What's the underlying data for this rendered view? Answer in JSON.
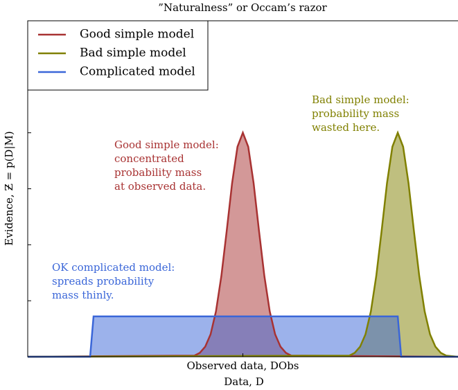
{
  "chart_data": {
    "type": "line",
    "title": "”Naturalness” or Occam’s razor",
    "x_label": "Data, D",
    "y_label": "Evidence, Ƶ = p(D|M)",
    "xlim": [
      0,
      10
    ],
    "ylim": [
      0,
      6
    ],
    "xticks": [
      {
        "value": 5,
        "label": "Observed data, DObs"
      }
    ],
    "yticks": [
      1,
      2,
      3,
      4,
      5
    ],
    "legend": "upper left",
    "fill": true,
    "series": [
      {
        "name": "Good simple model",
        "color": "#a83232",
        "x": [
          0,
          3.875,
          4,
          4.125,
          4.25,
          4.375,
          4.5,
          4.625,
          4.75,
          4.875,
          5,
          5.125,
          5.25,
          5.375,
          5.5,
          5.625,
          5.75,
          5.875,
          6,
          6.125,
          10
        ],
        "values": [
          0,
          0.02,
          0.07,
          0.18,
          0.4,
          0.81,
          1.44,
          2.25,
          3.1,
          3.75,
          4,
          3.75,
          3.1,
          2.25,
          1.44,
          0.81,
          0.4,
          0.18,
          0.07,
          0.02,
          0
        ]
      },
      {
        "name": "Bad simple model",
        "color": "#808000",
        "x": [
          0,
          7.475,
          7.6,
          7.725,
          7.85,
          7.975,
          8.1,
          8.225,
          8.35,
          8.475,
          8.6,
          8.725,
          8.85,
          8.975,
          9.1,
          9.225,
          9.35,
          9.475,
          9.6,
          9.725,
          10
        ],
        "values": [
          0,
          0.02,
          0.07,
          0.18,
          0.4,
          0.81,
          1.44,
          2.25,
          3.1,
          3.75,
          4,
          3.75,
          3.1,
          2.25,
          1.44,
          0.81,
          0.4,
          0.18,
          0.07,
          0.02,
          0
        ]
      },
      {
        "name": "Complicated model",
        "color": "#3a66d8",
        "x": [
          0,
          1.45,
          1.53,
          8.6,
          8.68,
          10
        ],
        "values": [
          0,
          0,
          0.72,
          0.72,
          0,
          0
        ]
      }
    ],
    "annotations": [
      {
        "lines": [
          "Good simple model:",
          "concentrated",
          "probability mass",
          "at observed data."
        ],
        "color": "#a83232"
      },
      {
        "lines": [
          "Bad simple model:",
          "probability mass",
          "wasted here."
        ],
        "color": "#808000"
      },
      {
        "lines": [
          "OK complicated model:",
          "spreads probability",
          "mass thinly."
        ],
        "color": "#3a66d8"
      }
    ]
  }
}
